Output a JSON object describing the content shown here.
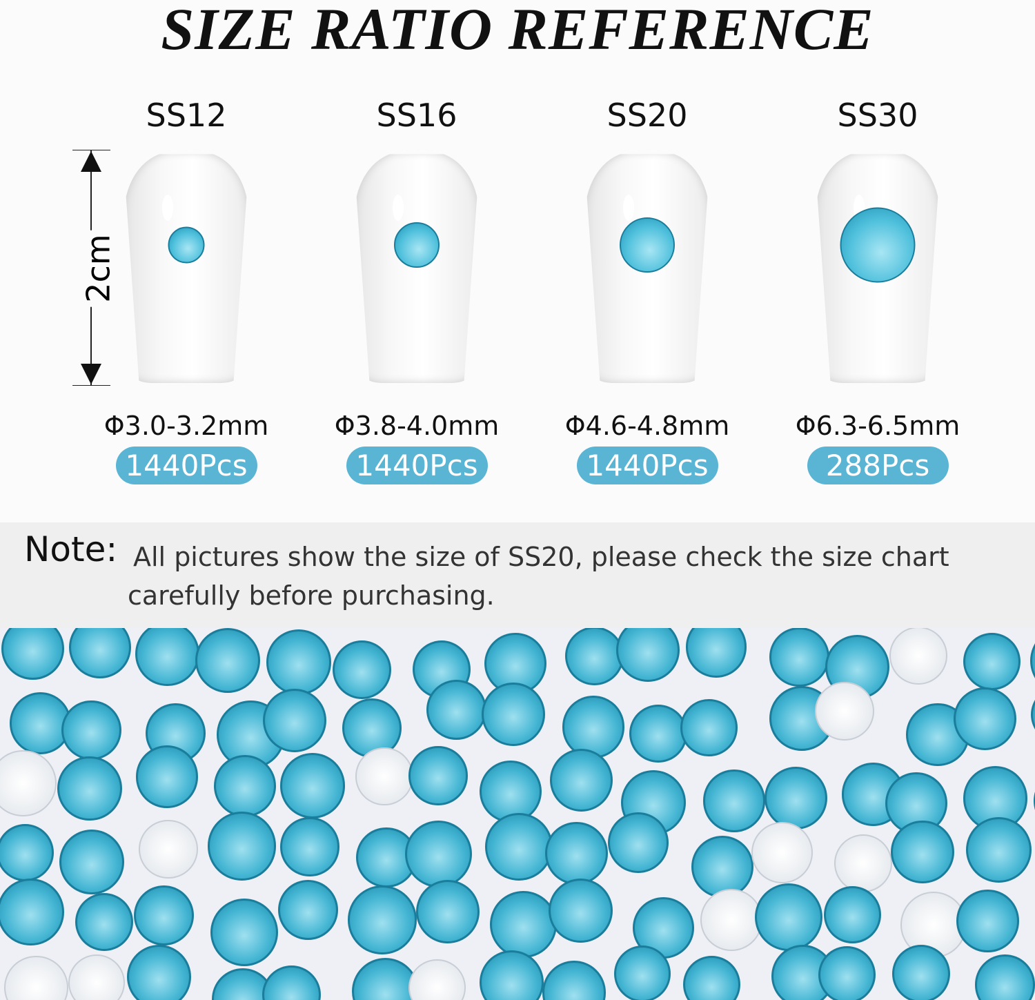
{
  "title": "SIZE RATIO REFERENCE",
  "ruler_label": "2cm",
  "sizes": [
    {
      "name": "SS12",
      "diameter": "Φ3.0-3.2mm",
      "count": "1440Pcs",
      "gem_mm": 3.1
    },
    {
      "name": "SS16",
      "diameter": "Φ3.8-4.0mm",
      "count": "1440Pcs",
      "gem_mm": 3.9
    },
    {
      "name": "SS20",
      "diameter": "Φ4.6-4.8mm",
      "count": "1440Pcs",
      "gem_mm": 4.7
    },
    {
      "name": "SS30",
      "diameter": "Φ6.3-6.5mm",
      "count": "288Pcs",
      "gem_mm": 6.4
    }
  ],
  "note": {
    "label": "Note:",
    "text": "All pictures show the size of SS20, please check the size chart carefully before purchasing."
  },
  "colors": {
    "badge": "#5ab4d4",
    "gem": "#4fc0dc"
  }
}
